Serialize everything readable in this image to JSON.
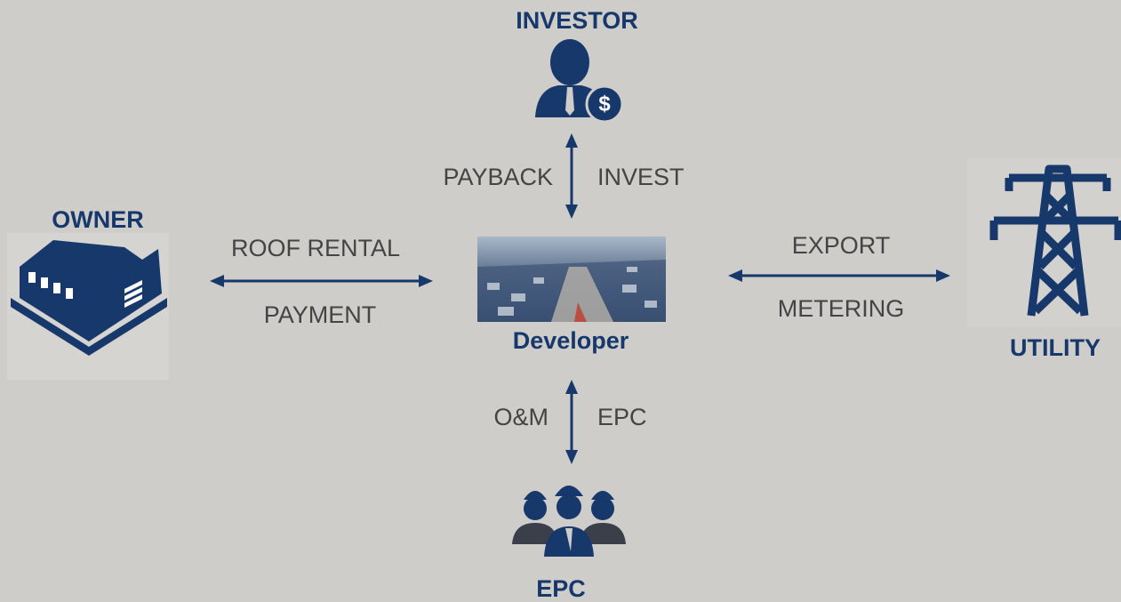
{
  "nodes": [
    {
      "label": "INVESTOR"
    },
    {
      "label": "OWNER"
    },
    {
      "label": "Developer"
    },
    {
      "label": "UTILITY"
    },
    {
      "label": "EPC"
    }
  ],
  "edges": [
    {
      "labels": [
        "PAYBACK",
        "INVEST"
      ]
    },
    {
      "labels": [
        "ROOF RENTAL",
        "PAYMENT"
      ]
    },
    {
      "labels": [
        "EXPORT",
        "METERING"
      ]
    },
    {
      "labels": [
        "O&M",
        "EPC"
      ]
    }
  ]
}
